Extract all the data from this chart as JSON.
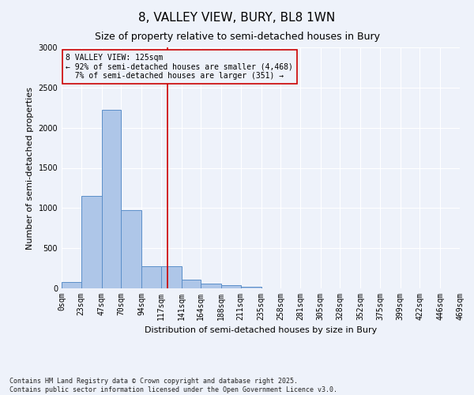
{
  "title": "8, VALLEY VIEW, BURY, BL8 1WN",
  "subtitle": "Size of property relative to semi-detached houses in Bury",
  "xlabel": "Distribution of semi-detached houses by size in Bury",
  "ylabel": "Number of semi-detached properties",
  "footnote": "Contains HM Land Registry data © Crown copyright and database right 2025.\nContains public sector information licensed under the Open Government Licence v3.0.",
  "bin_edges": [
    0,
    23,
    47,
    70,
    94,
    117,
    141,
    164,
    188,
    211,
    235,
    258,
    281,
    305,
    328,
    352,
    375,
    399,
    422,
    446,
    469
  ],
  "bin_labels": [
    "0sqm",
    "23sqm",
    "47sqm",
    "70sqm",
    "94sqm",
    "117sqm",
    "141sqm",
    "164sqm",
    "188sqm",
    "211sqm",
    "235sqm",
    "258sqm",
    "281sqm",
    "305sqm",
    "328sqm",
    "352sqm",
    "375sqm",
    "399sqm",
    "422sqm",
    "446sqm",
    "469sqm"
  ],
  "bar_heights": [
    75,
    1150,
    2220,
    970,
    280,
    280,
    110,
    55,
    40,
    20,
    0,
    0,
    0,
    0,
    0,
    0,
    0,
    0,
    0,
    0
  ],
  "bar_color": "#aec6e8",
  "bar_edge_color": "#5b8fc9",
  "property_size": 125,
  "property_label": "8 VALLEY VIEW: 125sqm",
  "pct_smaller": 92,
  "n_smaller": 4468,
  "pct_larger": 7,
  "n_larger": 351,
  "vline_color": "#cc0000",
  "ylim": [
    0,
    3000
  ],
  "yticks": [
    0,
    500,
    1000,
    1500,
    2000,
    2500,
    3000
  ],
  "background_color": "#eef2fa",
  "grid_color": "#ffffff",
  "title_fontsize": 11,
  "subtitle_fontsize": 9,
  "axis_label_fontsize": 8,
  "tick_fontsize": 7
}
